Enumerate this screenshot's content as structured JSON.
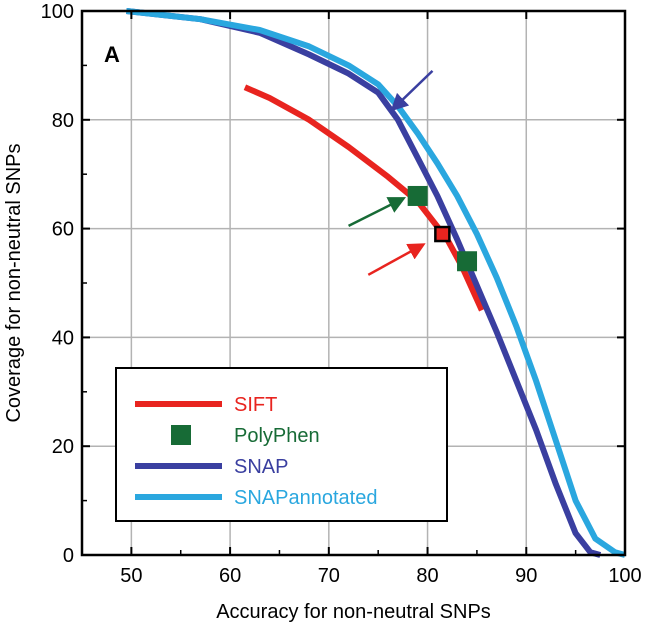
{
  "chart_data": {
    "type": "line",
    "panel_label": "A",
    "title": "",
    "xlabel": "Accuracy for non-neutral SNPs",
    "ylabel": "Coverage for non-neutral SNPs",
    "xlim": [
      45,
      100
    ],
    "ylim": [
      0,
      100
    ],
    "xticks": [
      50,
      60,
      70,
      80,
      90,
      100
    ],
    "yticks": [
      0,
      20,
      40,
      60,
      80,
      100
    ],
    "grid": true,
    "legend_position": "bottom-left",
    "series": [
      {
        "name": "SIFT",
        "kind": "line",
        "color": "#e8241f",
        "x": [
          61.5,
          64,
          68,
          72,
          76,
          79,
          80.5,
          82,
          83.5,
          85.5
        ],
        "y": [
          86,
          84,
          80,
          75,
          69.5,
          65,
          61.5,
          58,
          53,
          45
        ]
      },
      {
        "name": "PolyPhen",
        "kind": "marker",
        "color": "#176b36",
        "x": [
          79,
          84
        ],
        "y": [
          66,
          54
        ]
      },
      {
        "name": "SNAP",
        "kind": "line",
        "color": "#3a3fa0",
        "x": [
          49.5,
          57,
          63,
          68,
          72,
          75,
          77,
          79,
          81,
          83,
          85,
          87,
          89,
          91,
          93,
          95,
          96.5,
          97.5
        ],
        "y": [
          100,
          98.5,
          96,
          92,
          88.5,
          85,
          80,
          73,
          66,
          58,
          49.5,
          41,
          32,
          23,
          13,
          4,
          0.5,
          0
        ]
      },
      {
        "name": "SNAPannotated",
        "kind": "line",
        "color": "#2aa7df",
        "x": [
          49.5,
          57,
          63,
          68,
          72,
          75,
          77,
          79,
          81,
          83,
          85,
          87,
          89,
          91,
          93,
          95,
          97,
          99,
          100
        ],
        "y": [
          100,
          98.5,
          96.5,
          93.5,
          90,
          86.5,
          82.5,
          77.5,
          72,
          66,
          59,
          51,
          42,
          32,
          21,
          10,
          3,
          0.5,
          0
        ]
      }
    ],
    "highlight_marker": {
      "x": 81.5,
      "y": 59,
      "fill": "#e8241f",
      "stroke": "#000000"
    },
    "arrows": [
      {
        "color": "#3a3fa0",
        "from": [
          80.5,
          89
        ],
        "to": [
          76.5,
          82
        ]
      },
      {
        "color": "#176b36",
        "from": [
          72,
          60.5
        ],
        "to": [
          77.5,
          65.5
        ]
      },
      {
        "color": "#e8241f",
        "from": [
          74,
          51.5
        ],
        "to": [
          79.5,
          57
        ]
      }
    ]
  }
}
